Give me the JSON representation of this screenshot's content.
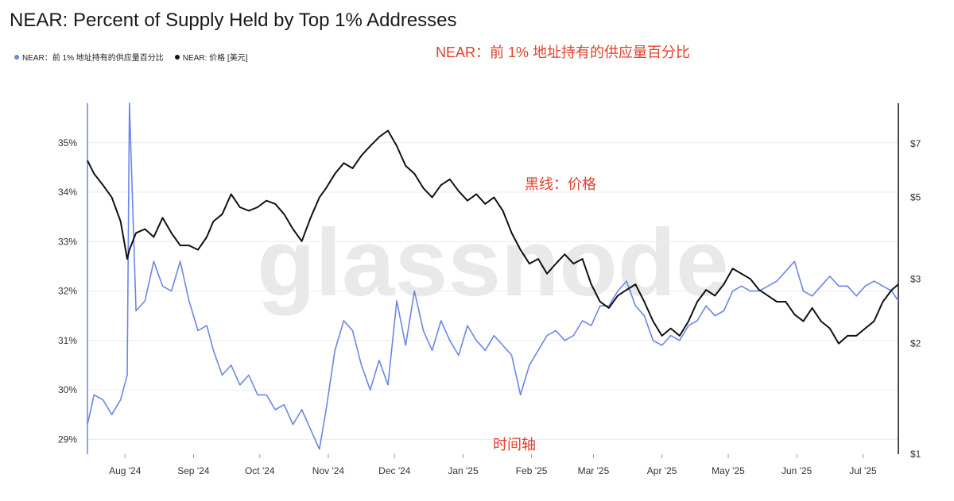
{
  "title": "NEAR: Percent of Supply Held by Top 1% Addresses",
  "legend": [
    {
      "label": "NEAR：前 1% 地址持有的供应量百分比",
      "color": "#6b86e6"
    },
    {
      "label": "NEAR: 价格 [美元]",
      "color": "#111111"
    }
  ],
  "annotations": {
    "top_right": "NEAR：前 1% 地址持有的供应量百分比",
    "price_line": "黑线：价格",
    "time_axis": "时间轴"
  },
  "watermark": "glassnode",
  "chart_data": {
    "type": "line",
    "title": "NEAR: Percent of Supply Held by Top 1% Addresses",
    "x_ticks": [
      "Aug '24",
      "Sep '24",
      "Oct '24",
      "Nov '24",
      "Dec '24",
      "Jan '25",
      "Feb '25",
      "Mar '25",
      "Apr '25",
      "May '25",
      "Jun '25",
      "Jul '25"
    ],
    "y_left": {
      "ticks": [
        "35%",
        "34%",
        "33%",
        "32%",
        "31%",
        "30%",
        "29%"
      ],
      "range": [
        28.7,
        35.8
      ]
    },
    "y_right": {
      "ticks": [
        "$7",
        "$5",
        "$3",
        "$2",
        "$1"
      ],
      "scale": "log"
    },
    "grid": true,
    "legend_position": "top-left",
    "series": [
      {
        "name": "NEAR：前 1% 地址持有的供应量百分比",
        "axis": "left",
        "color": "#6b86e6",
        "x": [
          "2024-07-19",
          "2024-07-22",
          "2024-07-26",
          "2024-07-30",
          "2024-08-03",
          "2024-08-06",
          "2024-08-07",
          "2024-08-10",
          "2024-08-14",
          "2024-08-18",
          "2024-08-22",
          "2024-08-26",
          "2024-08-30",
          "2024-09-03",
          "2024-09-07",
          "2024-09-11",
          "2024-09-14",
          "2024-09-18",
          "2024-09-22",
          "2024-09-26",
          "2024-09-30",
          "2024-10-04",
          "2024-10-08",
          "2024-10-12",
          "2024-10-16",
          "2024-10-20",
          "2024-10-24",
          "2024-10-28",
          "2024-11-01",
          "2024-11-04",
          "2024-11-08",
          "2024-11-12",
          "2024-11-16",
          "2024-11-20",
          "2024-11-24",
          "2024-11-28",
          "2024-12-02",
          "2024-12-06",
          "2024-12-10",
          "2024-12-14",
          "2024-12-18",
          "2024-12-22",
          "2024-12-26",
          "2024-12-30",
          "2025-01-03",
          "2025-01-07",
          "2025-01-11",
          "2025-01-15",
          "2025-01-19",
          "2025-01-23",
          "2025-01-27",
          "2025-01-31",
          "2025-02-04",
          "2025-02-08",
          "2025-02-12",
          "2025-02-16",
          "2025-02-20",
          "2025-02-24",
          "2025-02-28",
          "2025-03-04",
          "2025-03-08",
          "2025-03-12",
          "2025-03-16",
          "2025-03-20",
          "2025-03-24",
          "2025-03-28",
          "2025-04-01",
          "2025-04-05",
          "2025-04-09",
          "2025-04-13",
          "2025-04-17",
          "2025-04-21",
          "2025-04-25",
          "2025-04-29",
          "2025-05-03",
          "2025-05-07",
          "2025-05-11",
          "2025-05-15",
          "2025-05-19",
          "2025-05-23",
          "2025-05-27",
          "2025-05-31",
          "2025-06-04",
          "2025-06-08",
          "2025-06-12",
          "2025-06-16",
          "2025-06-20",
          "2025-06-24",
          "2025-06-28",
          "2025-07-02",
          "2025-07-06",
          "2025-07-10",
          "2025-07-14",
          "2025-07-18",
          "2025-07-21"
        ],
        "values": [
          29.3,
          29.9,
          29.8,
          29.5,
          29.8,
          30.3,
          35.8,
          31.6,
          31.8,
          32.6,
          32.1,
          32.0,
          32.6,
          31.8,
          31.2,
          31.3,
          30.8,
          30.3,
          30.5,
          30.1,
          30.3,
          29.9,
          29.9,
          29.6,
          29.7,
          29.3,
          29.6,
          29.2,
          28.8,
          29.6,
          30.8,
          31.4,
          31.2,
          30.5,
          30.0,
          30.6,
          30.1,
          31.8,
          30.9,
          32.0,
          31.2,
          30.8,
          31.4,
          31.0,
          30.7,
          31.3,
          31.0,
          30.8,
          31.1,
          30.9,
          30.7,
          29.9,
          30.5,
          30.8,
          31.1,
          31.2,
          31.0,
          31.1,
          31.4,
          31.3,
          31.7,
          31.7,
          32.0,
          32.2,
          31.7,
          31.5,
          31.0,
          30.9,
          31.1,
          31.0,
          31.3,
          31.4,
          31.7,
          31.5,
          31.6,
          32.0,
          32.1,
          32.0,
          32.0,
          32.1,
          32.2,
          32.4,
          32.6,
          32.0,
          31.9,
          32.1,
          32.3,
          32.1,
          32.1,
          31.9,
          32.1,
          32.2,
          32.1,
          32.0,
          31.8
        ]
      },
      {
        "name": "NEAR: 价格 [美元]",
        "axis": "right",
        "color": "#111111",
        "x": [
          "2024-07-19",
          "2024-07-22",
          "2024-07-26",
          "2024-07-30",
          "2024-08-03",
          "2024-08-06",
          "2024-08-07",
          "2024-08-10",
          "2024-08-14",
          "2024-08-18",
          "2024-08-22",
          "2024-08-26",
          "2024-08-30",
          "2024-09-03",
          "2024-09-07",
          "2024-09-11",
          "2024-09-14",
          "2024-09-18",
          "2024-09-22",
          "2024-09-26",
          "2024-09-30",
          "2024-10-04",
          "2024-10-08",
          "2024-10-12",
          "2024-10-16",
          "2024-10-20",
          "2024-10-24",
          "2024-10-28",
          "2024-11-01",
          "2024-11-04",
          "2024-11-08",
          "2024-11-12",
          "2024-11-16",
          "2024-11-20",
          "2024-11-24",
          "2024-11-28",
          "2024-12-02",
          "2024-12-06",
          "2024-12-10",
          "2024-12-14",
          "2024-12-18",
          "2024-12-22",
          "2024-12-26",
          "2024-12-30",
          "2025-01-03",
          "2025-01-07",
          "2025-01-11",
          "2025-01-15",
          "2025-01-19",
          "2025-01-23",
          "2025-01-27",
          "2025-01-31",
          "2025-02-04",
          "2025-02-08",
          "2025-02-12",
          "2025-02-16",
          "2025-02-20",
          "2025-02-24",
          "2025-02-28",
          "2025-03-04",
          "2025-03-08",
          "2025-03-12",
          "2025-03-16",
          "2025-03-20",
          "2025-03-24",
          "2025-03-28",
          "2025-04-01",
          "2025-04-05",
          "2025-04-09",
          "2025-04-13",
          "2025-04-17",
          "2025-04-21",
          "2025-04-25",
          "2025-04-29",
          "2025-05-03",
          "2025-05-07",
          "2025-05-11",
          "2025-05-15",
          "2025-05-19",
          "2025-05-23",
          "2025-05-27",
          "2025-05-31",
          "2025-06-04",
          "2025-06-08",
          "2025-06-12",
          "2025-06-16",
          "2025-06-20",
          "2025-06-24",
          "2025-06-28",
          "2025-07-02",
          "2025-07-06",
          "2025-07-10",
          "2025-07-14",
          "2025-07-18",
          "2025-07-21"
        ],
        "values": [
          6.3,
          5.8,
          5.4,
          5.0,
          4.3,
          3.4,
          3.6,
          4.0,
          4.1,
          3.9,
          4.4,
          4.0,
          3.7,
          3.7,
          3.6,
          3.9,
          4.3,
          4.5,
          5.1,
          4.7,
          4.6,
          4.7,
          4.9,
          4.8,
          4.5,
          4.1,
          3.8,
          4.4,
          5.0,
          5.3,
          5.8,
          6.2,
          6.0,
          6.5,
          6.9,
          7.3,
          7.6,
          6.9,
          6.1,
          5.8,
          5.3,
          5.0,
          5.4,
          5.6,
          5.2,
          4.9,
          5.1,
          4.8,
          5.0,
          4.6,
          4.0,
          3.6,
          3.3,
          3.4,
          3.1,
          3.3,
          3.5,
          3.3,
          3.4,
          2.9,
          2.6,
          2.5,
          2.7,
          2.8,
          2.9,
          2.6,
          2.3,
          2.1,
          2.2,
          2.1,
          2.3,
          2.6,
          2.8,
          2.7,
          2.9,
          3.2,
          3.1,
          3.0,
          2.8,
          2.7,
          2.6,
          2.6,
          2.4,
          2.3,
          2.5,
          2.3,
          2.2,
          2.0,
          2.1,
          2.1,
          2.2,
          2.3,
          2.6,
          2.8,
          2.9
        ]
      }
    ]
  }
}
